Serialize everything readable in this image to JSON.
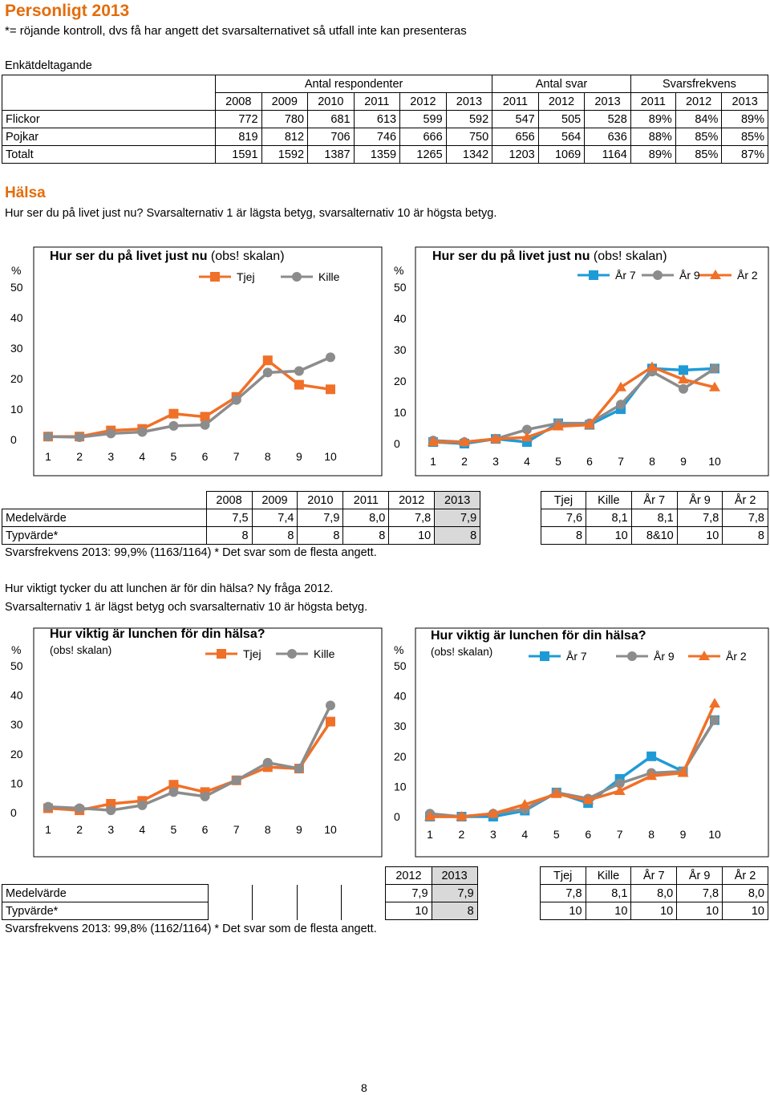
{
  "header": {
    "title": "Personligt 2013",
    "note": "*= röjande kontroll, dvs få har angett det svarsalternativet så utfall inte kan presenteras"
  },
  "participation": {
    "label": "Enkätdeltagande",
    "groups": [
      "Antal respondenter",
      "Antal svar",
      "Svarsfrekvens"
    ],
    "years": [
      "2008",
      "2009",
      "2010",
      "2011",
      "2012",
      "2013",
      "2011",
      "2012",
      "2013",
      "2011",
      "2012",
      "2013"
    ],
    "rows": [
      {
        "label": "Flickor",
        "values": [
          "772",
          "780",
          "681",
          "613",
          "599",
          "592",
          "547",
          "505",
          "528",
          "89%",
          "84%",
          "89%"
        ]
      },
      {
        "label": "Pojkar",
        "values": [
          "819",
          "812",
          "706",
          "746",
          "666",
          "750",
          "656",
          "564",
          "636",
          "88%",
          "85%",
          "85%"
        ]
      },
      {
        "label": "Totalt",
        "values": [
          "1591",
          "1592",
          "1387",
          "1359",
          "1265",
          "1342",
          "1203",
          "1069",
          "1164",
          "89%",
          "85%",
          "87%"
        ]
      }
    ]
  },
  "section": {
    "title": "Hälsa",
    "q1_text": "Hur ser du på livet just nu? Svarsalternativ 1 är lägsta betyg, svarsalternativ 10 är högsta betyg.",
    "q2_line1": "Hur viktigt tycker du att lunchen är för din hälsa? Ny fråga 2012.",
    "q2_line2": "Svarsalternativ 1 är lägst betyg och svarsalternativ 10 är högsta betyg."
  },
  "colors": {
    "tjej": "#F07028",
    "kille": "#8C8C8C",
    "ar7": "#1E9BD7",
    "ar9": "#8C8C8C",
    "ar2": "#F07028"
  },
  "chart_data": [
    {
      "type": "line",
      "title": "Hur ser du på livet just nu",
      "title_suffix": "(obs! skalan)",
      "ylabel": "%",
      "ylim": [
        0,
        50
      ],
      "yticks": [
        "0",
        "10",
        "20",
        "30",
        "40",
        "50"
      ],
      "categories": [
        "1",
        "2",
        "3",
        "4",
        "5",
        "6",
        "7",
        "8",
        "9",
        "10"
      ],
      "series": [
        {
          "name": "Tjej",
          "marker": "square",
          "values": [
            1,
            1,
            3,
            3.5,
            8.5,
            7.5,
            14,
            26,
            18,
            16.5
          ]
        },
        {
          "name": "Kille",
          "marker": "circle",
          "values": [
            1,
            0.8,
            2,
            2.5,
            4.5,
            4.8,
            13,
            22,
            22.5,
            27
          ]
        }
      ]
    },
    {
      "type": "line",
      "title": "Hur ser du på livet just nu",
      "title_suffix": "(obs! skalan)",
      "ylabel": "%",
      "ylim": [
        0,
        50
      ],
      "yticks": [
        "0",
        "10",
        "20",
        "30",
        "40",
        "50"
      ],
      "categories": [
        "1",
        "2",
        "3",
        "4",
        "5",
        "6",
        "7",
        "8",
        "9",
        "10"
      ],
      "series": [
        {
          "name": "År 7",
          "marker": "square",
          "values": [
            0.5,
            0,
            1.5,
            0.5,
            6.5,
            6,
            11,
            24,
            23.5,
            24
          ]
        },
        {
          "name": "År 9",
          "marker": "circle",
          "values": [
            1,
            0.5,
            1.5,
            4.5,
            6.5,
            6.5,
            12.5,
            23,
            17.5,
            24
          ]
        },
        {
          "name": "År 2",
          "marker": "triangle",
          "values": [
            0.5,
            0.5,
            1.5,
            2,
            5.5,
            6,
            18,
            24.5,
            20.5,
            18
          ]
        }
      ]
    },
    {
      "type": "line",
      "title": "Hur viktig är lunchen för din hälsa?",
      "title_suffix": "(obs! skalan)",
      "ylabel": "%",
      "ylim": [
        0,
        50
      ],
      "yticks": [
        "0",
        "10",
        "20",
        "30",
        "40",
        "50"
      ],
      "categories": [
        "1",
        "2",
        "3",
        "4",
        "5",
        "6",
        "7",
        "8",
        "9",
        "10"
      ],
      "series": [
        {
          "name": "Tjej",
          "marker": "square",
          "values": [
            1.5,
            0.8,
            3,
            4,
            9.5,
            7,
            11,
            15.5,
            15,
            31
          ]
        },
        {
          "name": "Kille",
          "marker": "circle",
          "values": [
            2,
            1.5,
            0.8,
            2.5,
            7,
            5.5,
            11,
            17,
            15,
            36.5
          ]
        }
      ]
    },
    {
      "type": "line",
      "title": "Hur viktig är lunchen för din hälsa?",
      "title_suffix": "(obs! skalan)",
      "ylabel": "%",
      "ylim": [
        0,
        50
      ],
      "yticks": [
        "0",
        "10",
        "20",
        "30",
        "40",
        "50"
      ],
      "categories": [
        "1",
        "2",
        "3",
        "4",
        "5",
        "6",
        "7",
        "8",
        "9",
        "10"
      ],
      "series": [
        {
          "name": "År 7",
          "marker": "square",
          "values": [
            0,
            0,
            0,
            2,
            8,
            4.5,
            12.5,
            20,
            15,
            32
          ]
        },
        {
          "name": "År 9",
          "marker": "circle",
          "values": [
            1,
            0,
            1,
            2.5,
            8,
            6,
            11,
            14.5,
            15,
            32
          ]
        },
        {
          "name": "År 2",
          "marker": "triangle",
          "values": [
            0,
            0,
            1,
            4,
            7.5,
            5.5,
            8.5,
            13.5,
            14.5,
            37.5
          ]
        }
      ]
    }
  ],
  "stats1": {
    "headers": [
      "2008",
      "2009",
      "2010",
      "2011",
      "2012",
      "2013",
      "Tjej",
      "Kille",
      "År 7",
      "År 9",
      "År 2"
    ],
    "rows": [
      {
        "label": "Medelvärde",
        "values": [
          "7,5",
          "7,4",
          "7,9",
          "8,0",
          "7,8",
          "7,9",
          "7,6",
          "8,1",
          "8,1",
          "7,8",
          "7,8"
        ]
      },
      {
        "label": "Typvärde*",
        "values": [
          "8",
          "8",
          "8",
          "8",
          "10",
          "8",
          "8",
          "10",
          "8&10",
          "10",
          "8"
        ]
      }
    ],
    "footer": "Svarsfrekvens 2013: 99,9% (1163/1164) * Det svar som de flesta angett."
  },
  "stats2": {
    "headers": [
      "2012",
      "2013",
      "Tjej",
      "Kille",
      "År 7",
      "År 9",
      "År 2"
    ],
    "rows": [
      {
        "label": "Medelvärde",
        "values": [
          "7,9",
          "7,9",
          "7,8",
          "8,1",
          "8,0",
          "7,8",
          "8,0"
        ]
      },
      {
        "label": "Typvärde*",
        "values": [
          "10",
          "8",
          "10",
          "10",
          "10",
          "10",
          "10"
        ]
      }
    ],
    "footer": "Svarsfrekvens 2013: 99,8% (1162/1164) * Det svar som de flesta angett."
  },
  "footer": {
    "page": "8"
  }
}
